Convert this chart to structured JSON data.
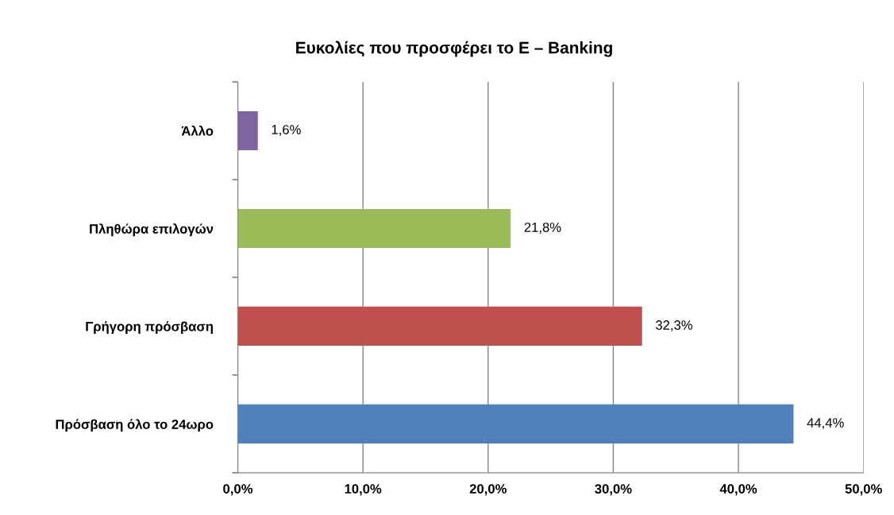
{
  "chart_data": {
    "type": "bar",
    "orientation": "horizontal",
    "title": "Ευκολίες που προσφέρει το E – Banking",
    "categories": [
      "Άλλο",
      "Πληθώρα επιλογών",
      "Γρήγορη πρόσβαση",
      "Πρόσβαση όλο το 24ωρο"
    ],
    "values": [
      1.6,
      21.8,
      32.3,
      44.4
    ],
    "colors": [
      "#8064a2",
      "#9bbb59",
      "#c0504d",
      "#4f81bd"
    ],
    "value_labels": [
      "1,6%",
      "21,8%",
      "32,3%",
      "44,4%"
    ],
    "xlim": [
      0,
      50
    ],
    "xticks": [
      {
        "value": 0,
        "label": "0,0%"
      },
      {
        "value": 10,
        "label": "10,0%"
      },
      {
        "value": 20,
        "label": "20,0%"
      },
      {
        "value": 30,
        "label": "30,0%"
      },
      {
        "value": 40,
        "label": "40,0%"
      },
      {
        "value": 50,
        "label": "50,0%"
      }
    ],
    "grid": "x",
    "legend": false
  }
}
